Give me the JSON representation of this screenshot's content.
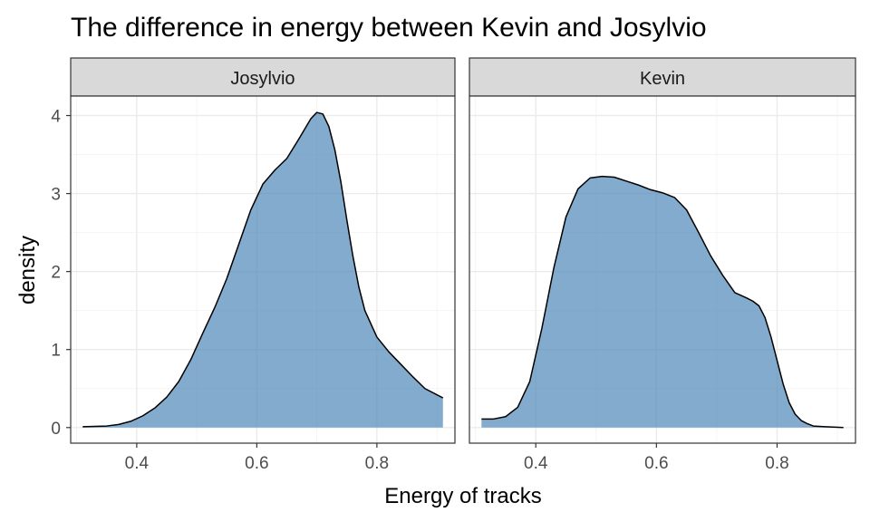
{
  "chart_data": {
    "type": "area",
    "title": "The difference in energy between Kevin and Josylvio",
    "xlabel": "Energy of tracks",
    "ylabel": "density",
    "xlim": [
      0.29,
      0.93
    ],
    "ylim": [
      -0.2,
      4.25
    ],
    "x_ticks": [
      0.4,
      0.6,
      0.8
    ],
    "x_tick_labels": [
      "0.4",
      "0.6",
      "0.8"
    ],
    "x_minor": [
      0.3,
      0.5,
      0.7,
      0.9
    ],
    "y_ticks": [
      0,
      1,
      2,
      3,
      4
    ],
    "y_tick_labels": [
      "0",
      "1",
      "2",
      "3",
      "4"
    ],
    "y_minor": [
      0.5,
      1.5,
      2.5,
      3.5
    ],
    "grid": true,
    "fill_color": "#4682B4",
    "fill_opacity": 0.67,
    "line_color": "#000000",
    "strip_fill": "#D9D9D9",
    "panels": [
      {
        "name": "Josylvio",
        "x": [
          0.31,
          0.35,
          0.37,
          0.39,
          0.41,
          0.43,
          0.45,
          0.47,
          0.49,
          0.51,
          0.53,
          0.55,
          0.57,
          0.59,
          0.61,
          0.63,
          0.65,
          0.67,
          0.69,
          0.7,
          0.71,
          0.72,
          0.73,
          0.74,
          0.75,
          0.76,
          0.77,
          0.78,
          0.8,
          0.82,
          0.84,
          0.86,
          0.88,
          0.91
        ],
        "y": [
          0.01,
          0.02,
          0.04,
          0.08,
          0.15,
          0.25,
          0.39,
          0.59,
          0.87,
          1.21,
          1.54,
          1.91,
          2.35,
          2.79,
          3.12,
          3.3,
          3.45,
          3.7,
          3.96,
          4.04,
          4.02,
          3.86,
          3.56,
          3.15,
          2.66,
          2.2,
          1.8,
          1.5,
          1.16,
          0.97,
          0.81,
          0.65,
          0.5,
          0.38
        ]
      },
      {
        "name": "Kevin",
        "x": [
          0.31,
          0.33,
          0.35,
          0.37,
          0.39,
          0.41,
          0.43,
          0.45,
          0.47,
          0.49,
          0.51,
          0.53,
          0.55,
          0.57,
          0.59,
          0.61,
          0.63,
          0.65,
          0.67,
          0.69,
          0.71,
          0.73,
          0.75,
          0.76,
          0.77,
          0.78,
          0.79,
          0.8,
          0.81,
          0.82,
          0.83,
          0.84,
          0.85,
          0.86,
          0.88,
          0.91
        ],
        "y": [
          0.11,
          0.11,
          0.14,
          0.26,
          0.59,
          1.27,
          2.05,
          2.7,
          3.06,
          3.2,
          3.22,
          3.21,
          3.16,
          3.11,
          3.05,
          3.01,
          2.95,
          2.79,
          2.5,
          2.2,
          1.95,
          1.73,
          1.66,
          1.62,
          1.56,
          1.41,
          1.16,
          0.86,
          0.56,
          0.32,
          0.17,
          0.09,
          0.05,
          0.02,
          0.01,
          0.0
        ]
      }
    ]
  }
}
